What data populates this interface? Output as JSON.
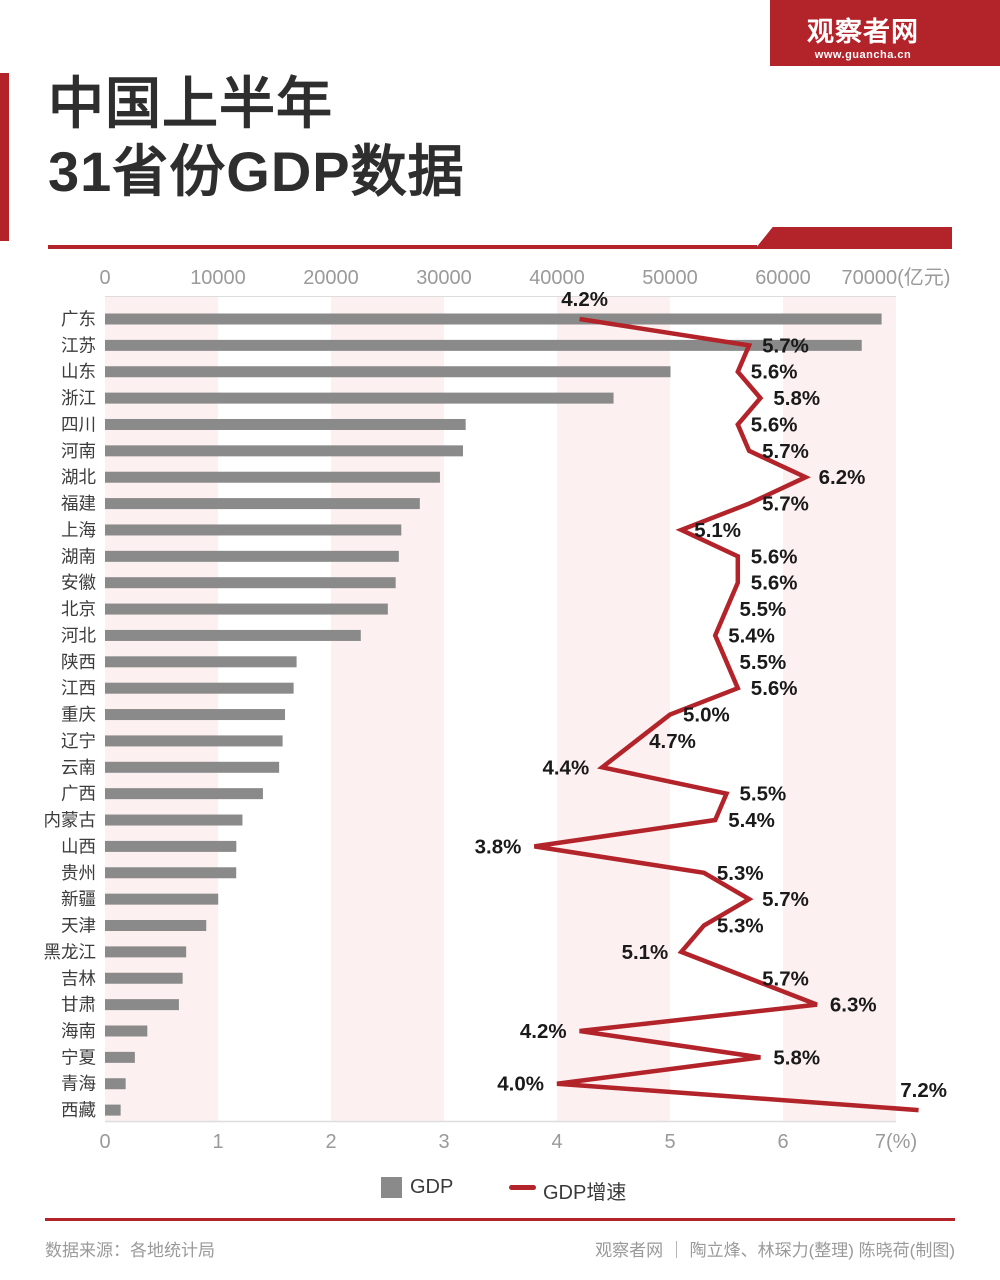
{
  "header": {
    "site_name": "观察者网",
    "site_url": "www.guancha.cn"
  },
  "title": {
    "line1": "中国上半年",
    "line2": "31省份GDP数据"
  },
  "legend": {
    "gdp_label": "GDP",
    "growth_label": "GDP增速"
  },
  "footer": {
    "source": "数据来源：各地统计局",
    "credit": "观察者网 ｜ 陶立烽、林琛力(整理) 陈晓荷(制图)"
  },
  "colors": {
    "brand_red": "#b2232a",
    "bar_gray": "#8a8a8a",
    "band_pink": "#fdf0f0",
    "axis_gray": "#9a9a9a",
    "province_text": "#3c3c3c",
    "percent_text": "#1a1a1a",
    "axis_line": "#dddddd"
  },
  "chart_data": {
    "type": "bar",
    "orientation": "horizontal",
    "title": "中国上半年31省份GDP数据",
    "categories": [
      "广东",
      "江苏",
      "山东",
      "浙江",
      "四川",
      "河南",
      "湖北",
      "福建",
      "上海",
      "湖南",
      "安徽",
      "北京",
      "河北",
      "陕西",
      "江西",
      "重庆",
      "辽宁",
      "云南",
      "广西",
      "内蒙古",
      "山西",
      "贵州",
      "新疆",
      "天津",
      "黑龙江",
      "吉林",
      "甘肃",
      "海南",
      "宁夏",
      "青海",
      "西藏"
    ],
    "series": [
      {
        "name": "GDP",
        "type": "bar",
        "unit": "亿元",
        "values": [
          68725,
          66967,
          50046,
          45004,
          31918,
          31683,
          29643,
          27861,
          26222,
          26002,
          25723,
          25029,
          22635,
          16955,
          16692,
          15930,
          15717,
          15410,
          13975,
          12164,
          11621,
          11612,
          10017,
          8961,
          7183,
          6871,
          6540,
          3745,
          2643,
          1828,
          1383
        ]
      },
      {
        "name": "GDP增速",
        "type": "line",
        "unit": "%",
        "values": [
          4.2,
          5.7,
          5.6,
          5.8,
          5.6,
          5.7,
          6.2,
          5.7,
          5.1,
          5.6,
          5.6,
          5.5,
          5.4,
          5.5,
          5.6,
          5.0,
          4.7,
          4.4,
          5.5,
          5.4,
          3.8,
          5.3,
          5.7,
          5.3,
          5.1,
          5.7,
          6.3,
          4.2,
          5.8,
          4.0,
          7.2
        ],
        "label_side": [
          "above",
          "right",
          "right",
          "right",
          "right",
          "right",
          "right",
          "right",
          "right",
          "right",
          "right",
          "right",
          "right",
          "right",
          "right",
          "right",
          "right",
          "left",
          "right",
          "right",
          "left",
          "right",
          "right",
          "right",
          "left",
          "right",
          "right",
          "left",
          "right",
          "left",
          "above"
        ]
      }
    ],
    "top_axis": {
      "title": "(亿元)",
      "range": [
        0,
        70000
      ],
      "ticks": [
        "0",
        "10000",
        "20000",
        "30000",
        "40000",
        "50000",
        "60000",
        "70000(亿元)"
      ]
    },
    "bottom_axis": {
      "title": "(%)",
      "range": [
        0,
        7
      ],
      "ticks": [
        "0",
        "1",
        "2",
        "3",
        "4",
        "5",
        "6",
        "7(%)"
      ]
    },
    "band_units": [
      [
        0,
        1
      ],
      [
        2,
        3
      ],
      [
        4,
        5
      ],
      [
        6,
        7
      ]
    ],
    "legend": [
      "GDP",
      "GDP增速"
    ],
    "legend_position": "bottom"
  }
}
